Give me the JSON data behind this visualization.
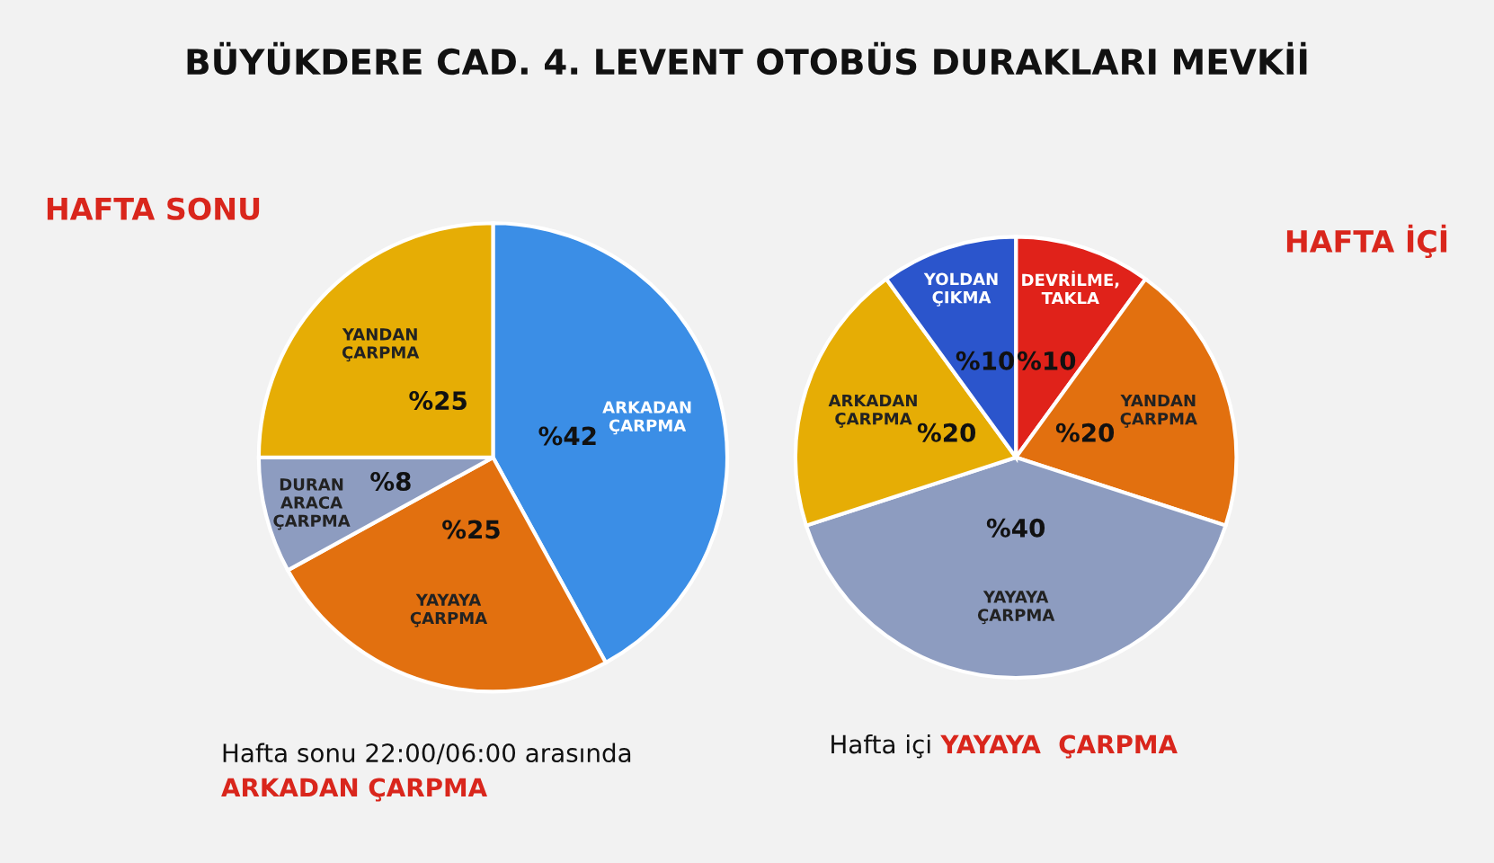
{
  "chart_data": [
    {
      "type": "pie",
      "title": "BÜYÜKDERE CAD. 4. LEVENT OTOBÜS DURAKLARI MEVKİİ",
      "subtitle": "HAFTA SONU",
      "categories": [
        "ARKADAN ÇARPMA",
        "YAYAYA ÇARPMA",
        "DURAN ARACA ÇARPMA",
        "YANDAN ÇARPMA"
      ],
      "values": [
        42,
        25,
        8,
        25
      ],
      "value_labels": [
        "%42",
        "%25",
        "%8",
        "%25"
      ],
      "colors": [
        "#3b8ee6",
        "#e2700f",
        "#8d9cc0",
        "#e6ad05"
      ],
      "annotations": [
        "Hafta sonu 22:00/06:00 arasında",
        "ARKADAN ÇARPMA"
      ],
      "legend": false
    },
    {
      "type": "pie",
      "subtitle": "HAFTA İÇİ",
      "categories": [
        "DEVRİLME, TAKLA",
        "YANDAN ÇARPMA",
        "YAYAYA ÇARPMA",
        "ARKADAN ÇARPMA",
        "YOLDAN ÇIKMA"
      ],
      "values": [
        10,
        20,
        40,
        20,
        10
      ],
      "value_labels": [
        "%10",
        "%20",
        "%40",
        "%20",
        "%10"
      ],
      "colors": [
        "#e0221a",
        "#e2700f",
        "#8d9cc0",
        "#e6ad05",
        "#2b55cc"
      ],
      "annotations": [
        "Hafta içi",
        "YAYAYA  ÇARPMA"
      ],
      "legend": false
    }
  ]
}
